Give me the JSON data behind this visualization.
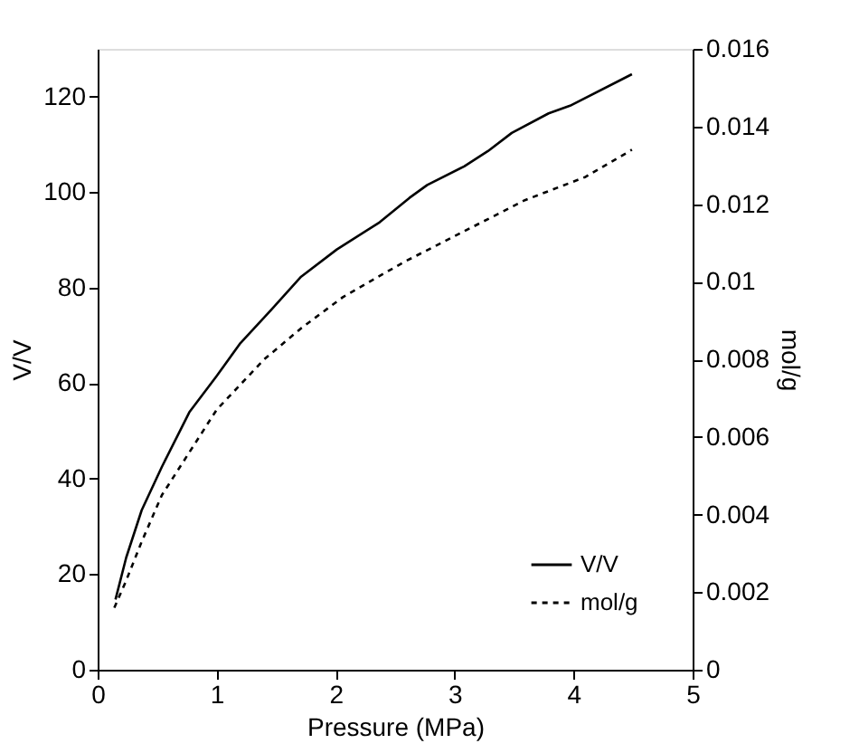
{
  "chart_data": {
    "type": "line",
    "xlabel": "Pressure (MPa)",
    "ylabel": "V/V",
    "y2label": "mol/g",
    "xlim": [
      0,
      5
    ],
    "xticks": [
      0,
      1,
      2,
      3,
      4,
      5
    ],
    "ylim": [
      0,
      130
    ],
    "yticks": [
      0,
      20,
      40,
      60,
      80,
      100,
      120
    ],
    "y2lim": [
      0,
      0.016
    ],
    "y2ticks": [
      0,
      0.002,
      0.004,
      0.006,
      0.008,
      0.01,
      0.012,
      0.014,
      0.016
    ],
    "grid": false,
    "legend": "bottom right",
    "marker": "none",
    "series": [
      {
        "name": "V/V",
        "color": "#000000",
        "line_style": "solid",
        "x": [
          0.15,
          0.24,
          0.37,
          0.54,
          0.77,
          1.0,
          1.2,
          1.46,
          1.71,
          2.01,
          2.37,
          2.62,
          2.77,
          3.08,
          3.28,
          3.48,
          3.79,
          3.97,
          4.49
        ],
        "values": [
          14.7,
          23.5,
          33.4,
          42.5,
          53.9,
          61.5,
          68.4,
          75.4,
          82.3,
          88,
          93.7,
          98.8,
          101.5,
          105.4,
          108.6,
          112.4,
          116.5,
          118.1,
          124.7
        ]
      },
      {
        "name": "mol/g",
        "color": "#000000",
        "line_style": "dotted",
        "axis": "y2",
        "x": [
          0.14,
          0.24,
          0.37,
          0.54,
          0.77,
          1.0,
          1.4,
          1.71,
          2.06,
          2.57,
          3.08,
          3.59,
          4.1,
          4.49
        ],
        "values": [
          0.0016,
          0.0023,
          0.0033,
          0.0045,
          0.0056,
          0.0067,
          0.008,
          0.0088,
          0.0096,
          0.0105,
          0.0113,
          0.0121,
          0.0127,
          0.0134
        ]
      }
    ]
  }
}
